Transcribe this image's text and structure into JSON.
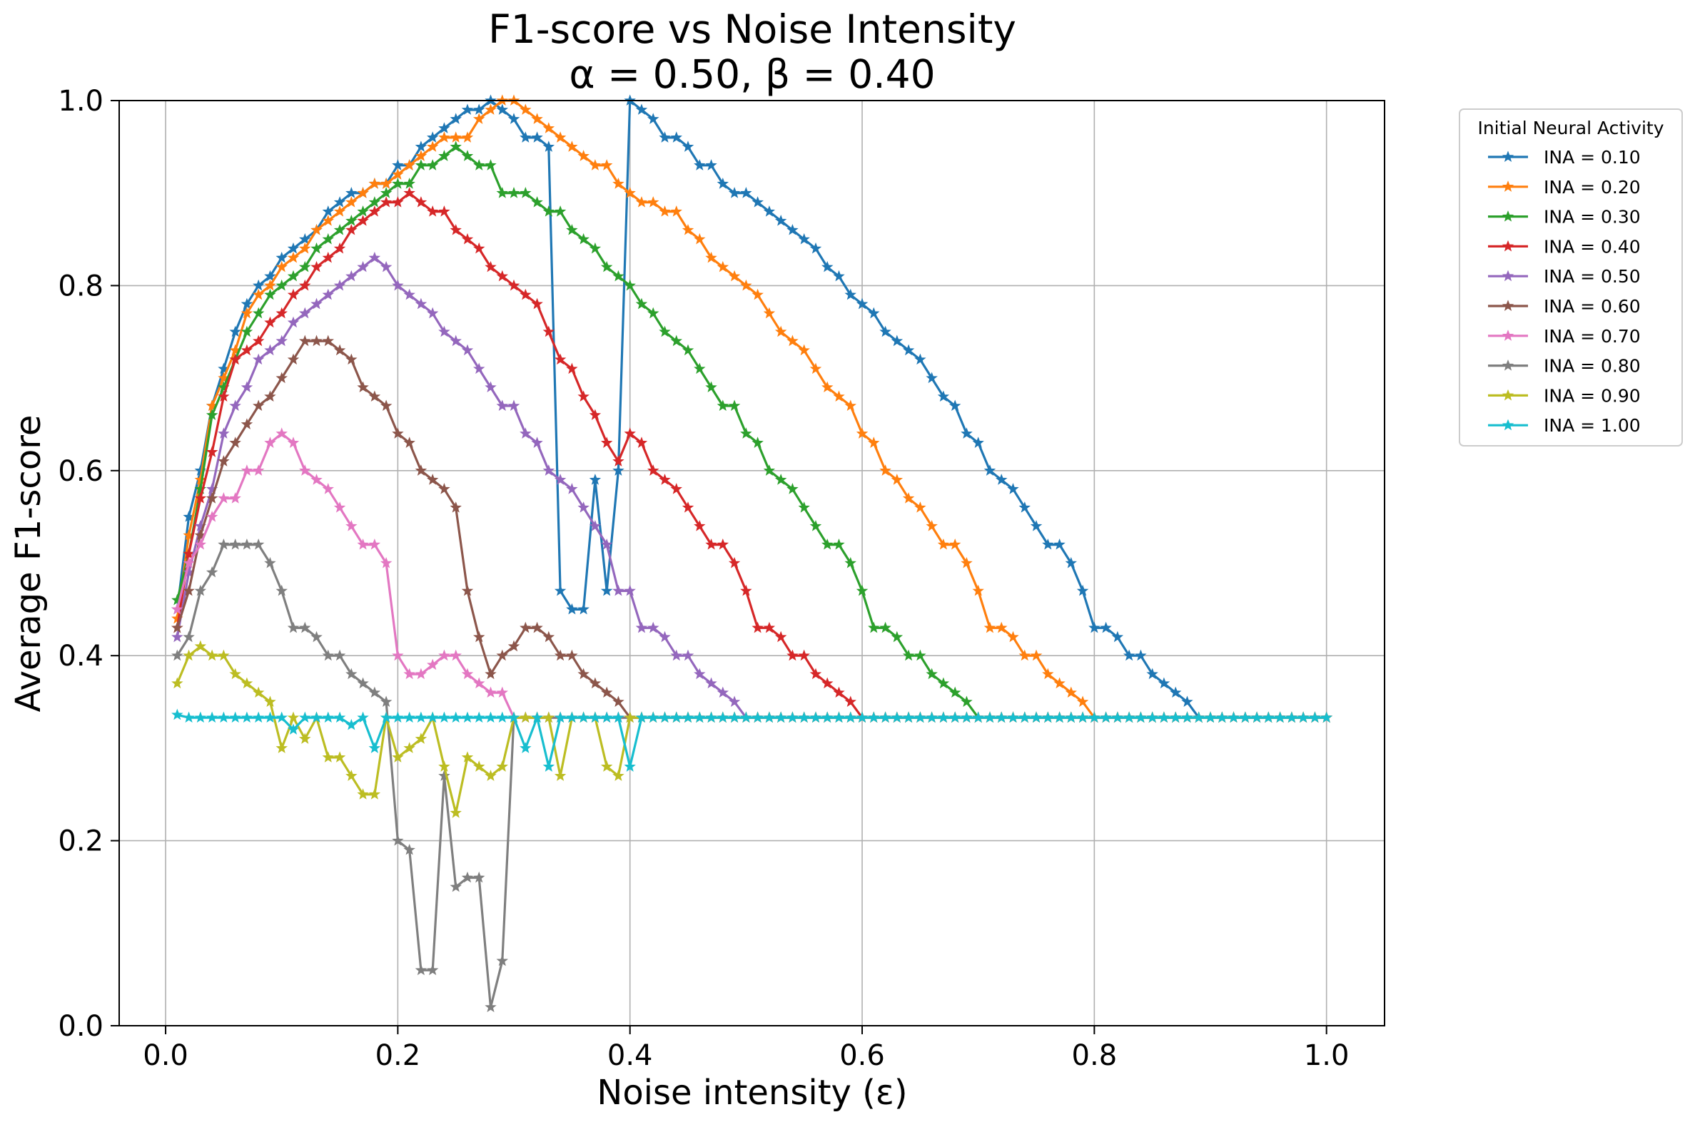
{
  "chart_data": {
    "type": "line",
    "title": "F1-score vs Noise Intensity",
    "subtitle": "α = 0.50, β = 0.40",
    "xlabel": "Noise intensity (ε)",
    "ylabel": "Average F1-score",
    "xlim": [
      -0.04,
      1.05
    ],
    "ylim": [
      0.0,
      1.0
    ],
    "xticks": [
      "0.0",
      "0.2",
      "0.4",
      "0.6",
      "0.8",
      "1.0"
    ],
    "yticks": [
      "0.0",
      "0.2",
      "0.4",
      "0.6",
      "0.8",
      "1.0"
    ],
    "grid": true,
    "marker": "star",
    "legend_title": "Initial Neural Activity",
    "legend_position": "outside-top-right",
    "x_start": 0.01,
    "x_step": 0.01,
    "series": [
      {
        "name": "INA = 0.10",
        "color": "#1f77b4",
        "values": [
          0.45,
          0.55,
          0.6,
          0.67,
          0.71,
          0.75,
          0.78,
          0.8,
          0.81,
          0.83,
          0.84,
          0.85,
          0.86,
          0.88,
          0.89,
          0.9,
          0.9,
          0.91,
          0.91,
          0.93,
          0.93,
          0.95,
          0.96,
          0.97,
          0.98,
          0.99,
          0.99,
          1.0,
          0.99,
          0.98,
          0.96,
          0.96,
          0.95,
          0.47,
          0.45,
          0.45,
          0.59,
          0.47,
          0.6,
          1.0,
          0.99,
          0.98,
          0.96,
          0.96,
          0.95,
          0.93,
          0.93,
          0.91,
          0.9,
          0.9,
          0.89,
          0.88,
          0.87,
          0.86,
          0.85,
          0.84,
          0.82,
          0.81,
          0.79,
          0.78,
          0.77,
          0.75,
          0.74,
          0.73,
          0.72,
          0.7,
          0.68,
          0.67,
          0.64,
          0.63,
          0.6,
          0.59,
          0.58,
          0.56,
          0.54,
          0.52,
          0.52,
          0.5,
          0.47,
          0.43,
          0.43,
          0.42,
          0.4,
          0.4,
          0.38,
          0.37,
          0.36,
          0.35,
          0.333,
          0.333,
          0.333,
          0.333,
          0.333,
          0.333,
          0.333,
          0.333,
          0.333,
          0.333,
          0.333,
          0.333
        ]
      },
      {
        "name": "INA = 0.20",
        "color": "#ff7f0e",
        "values": [
          0.44,
          0.53,
          0.59,
          0.67,
          0.7,
          0.73,
          0.77,
          0.79,
          0.8,
          0.82,
          0.83,
          0.84,
          0.86,
          0.87,
          0.88,
          0.89,
          0.9,
          0.91,
          0.91,
          0.92,
          0.93,
          0.94,
          0.95,
          0.96,
          0.96,
          0.96,
          0.98,
          0.99,
          1.0,
          1.0,
          0.99,
          0.98,
          0.97,
          0.96,
          0.95,
          0.94,
          0.93,
          0.93,
          0.91,
          0.9,
          0.89,
          0.89,
          0.88,
          0.88,
          0.86,
          0.85,
          0.83,
          0.82,
          0.81,
          0.8,
          0.79,
          0.77,
          0.75,
          0.74,
          0.73,
          0.71,
          0.69,
          0.68,
          0.67,
          0.64,
          0.63,
          0.6,
          0.59,
          0.57,
          0.56,
          0.54,
          0.52,
          0.52,
          0.5,
          0.47,
          0.43,
          0.43,
          0.42,
          0.4,
          0.4,
          0.38,
          0.37,
          0.36,
          0.35,
          0.333,
          0.333,
          0.333,
          0.333,
          0.333,
          0.333,
          0.333,
          0.333,
          0.333,
          0.333,
          0.333,
          0.333,
          0.333,
          0.333,
          0.333,
          0.333,
          0.333,
          0.333,
          0.333,
          0.333,
          0.333
        ]
      },
      {
        "name": "INA = 0.30",
        "color": "#2ca02c",
        "values": [
          0.46,
          0.51,
          0.58,
          0.66,
          0.69,
          0.72,
          0.75,
          0.77,
          0.79,
          0.8,
          0.81,
          0.82,
          0.84,
          0.85,
          0.86,
          0.87,
          0.88,
          0.89,
          0.9,
          0.91,
          0.91,
          0.93,
          0.93,
          0.94,
          0.95,
          0.94,
          0.93,
          0.93,
          0.9,
          0.9,
          0.9,
          0.89,
          0.88,
          0.88,
          0.86,
          0.85,
          0.84,
          0.82,
          0.81,
          0.8,
          0.78,
          0.77,
          0.75,
          0.74,
          0.73,
          0.71,
          0.69,
          0.67,
          0.67,
          0.64,
          0.63,
          0.6,
          0.59,
          0.58,
          0.56,
          0.54,
          0.52,
          0.52,
          0.5,
          0.47,
          0.43,
          0.43,
          0.42,
          0.4,
          0.4,
          0.38,
          0.37,
          0.36,
          0.35,
          0.333,
          0.333,
          0.333,
          0.333,
          0.333,
          0.333,
          0.333,
          0.333,
          0.333,
          0.333,
          0.333,
          0.333,
          0.333,
          0.333,
          0.333,
          0.333,
          0.333,
          0.333,
          0.333,
          0.333,
          0.333,
          0.333,
          0.333,
          0.333,
          0.333,
          0.333,
          0.333,
          0.333,
          0.333,
          0.333,
          0.333
        ]
      },
      {
        "name": "INA = 0.40",
        "color": "#d62728",
        "values": [
          0.43,
          0.51,
          0.57,
          0.62,
          0.68,
          0.72,
          0.73,
          0.74,
          0.76,
          0.77,
          0.79,
          0.8,
          0.82,
          0.83,
          0.84,
          0.86,
          0.87,
          0.88,
          0.89,
          0.89,
          0.9,
          0.89,
          0.88,
          0.88,
          0.86,
          0.85,
          0.84,
          0.82,
          0.81,
          0.8,
          0.79,
          0.78,
          0.75,
          0.72,
          0.71,
          0.68,
          0.66,
          0.63,
          0.61,
          0.64,
          0.63,
          0.6,
          0.59,
          0.58,
          0.56,
          0.54,
          0.52,
          0.52,
          0.5,
          0.47,
          0.43,
          0.43,
          0.42,
          0.4,
          0.4,
          0.38,
          0.37,
          0.36,
          0.35,
          0.333,
          0.333,
          0.333,
          0.333,
          0.333,
          0.333,
          0.333,
          0.333,
          0.333,
          0.333,
          0.333,
          0.333,
          0.333,
          0.333,
          0.333,
          0.333,
          0.333,
          0.333,
          0.333,
          0.333,
          0.333,
          0.333,
          0.333,
          0.333,
          0.333,
          0.333,
          0.333,
          0.333,
          0.333,
          0.333,
          0.333,
          0.333,
          0.333,
          0.333,
          0.333,
          0.333,
          0.333,
          0.333,
          0.333,
          0.333,
          0.333
        ]
      },
      {
        "name": "INA = 0.50",
        "color": "#9467bd",
        "values": [
          0.42,
          0.49,
          0.54,
          0.58,
          0.64,
          0.67,
          0.69,
          0.72,
          0.73,
          0.74,
          0.76,
          0.77,
          0.78,
          0.79,
          0.8,
          0.81,
          0.82,
          0.83,
          0.82,
          0.8,
          0.79,
          0.78,
          0.77,
          0.75,
          0.74,
          0.73,
          0.71,
          0.69,
          0.67,
          0.67,
          0.64,
          0.63,
          0.6,
          0.59,
          0.58,
          0.56,
          0.54,
          0.52,
          0.47,
          0.47,
          0.43,
          0.43,
          0.42,
          0.4,
          0.4,
          0.38,
          0.37,
          0.36,
          0.35,
          0.333,
          0.333,
          0.333,
          0.333,
          0.333,
          0.333,
          0.333,
          0.333,
          0.333,
          0.333,
          0.333,
          0.333,
          0.333,
          0.333,
          0.333,
          0.333,
          0.333,
          0.333,
          0.333,
          0.333,
          0.333,
          0.333,
          0.333,
          0.333,
          0.333,
          0.333,
          0.333,
          0.333,
          0.333,
          0.333,
          0.333,
          0.333,
          0.333,
          0.333,
          0.333,
          0.333,
          0.333,
          0.333,
          0.333,
          0.333,
          0.333,
          0.333,
          0.333,
          0.333,
          0.333,
          0.333,
          0.333,
          0.333,
          0.333,
          0.333,
          0.333
        ]
      },
      {
        "name": "INA = 0.60",
        "color": "#8c564b",
        "values": [
          0.43,
          0.47,
          0.53,
          0.57,
          0.61,
          0.63,
          0.65,
          0.67,
          0.68,
          0.7,
          0.72,
          0.74,
          0.74,
          0.74,
          0.73,
          0.72,
          0.69,
          0.68,
          0.67,
          0.64,
          0.63,
          0.6,
          0.59,
          0.58,
          0.56,
          0.47,
          0.42,
          0.38,
          0.4,
          0.41,
          0.43,
          0.43,
          0.42,
          0.4,
          0.4,
          0.38,
          0.37,
          0.36,
          0.35,
          0.333,
          0.333,
          0.333,
          0.333,
          0.333,
          0.333,
          0.333,
          0.333,
          0.333,
          0.333,
          0.333,
          0.333,
          0.333,
          0.333,
          0.333,
          0.333,
          0.333,
          0.333,
          0.333,
          0.333,
          0.333,
          0.333,
          0.333,
          0.333,
          0.333,
          0.333,
          0.333,
          0.333,
          0.333,
          0.333,
          0.333,
          0.333,
          0.333,
          0.333,
          0.333,
          0.333,
          0.333,
          0.333,
          0.333,
          0.333,
          0.333,
          0.333,
          0.333,
          0.333,
          0.333,
          0.333,
          0.333,
          0.333,
          0.333,
          0.333,
          0.333,
          0.333,
          0.333,
          0.333,
          0.333,
          0.333,
          0.333,
          0.333,
          0.333,
          0.333,
          0.333
        ]
      },
      {
        "name": "INA = 0.70",
        "color": "#e377c2",
        "values": [
          0.45,
          0.5,
          0.52,
          0.55,
          0.57,
          0.57,
          0.6,
          0.6,
          0.63,
          0.64,
          0.63,
          0.6,
          0.59,
          0.58,
          0.56,
          0.54,
          0.52,
          0.52,
          0.5,
          0.4,
          0.38,
          0.38,
          0.39,
          0.4,
          0.4,
          0.38,
          0.37,
          0.36,
          0.36,
          0.333,
          0.333,
          0.333,
          0.333,
          0.333,
          0.333,
          0.333,
          0.333,
          0.333,
          0.333,
          0.333,
          0.333,
          0.333,
          0.333,
          0.333,
          0.333,
          0.333,
          0.333,
          0.333,
          0.333,
          0.333,
          0.333,
          0.333,
          0.333,
          0.333,
          0.333,
          0.333,
          0.333,
          0.333,
          0.333,
          0.333,
          0.333,
          0.333,
          0.333,
          0.333,
          0.333,
          0.333,
          0.333,
          0.333,
          0.333,
          0.333,
          0.333,
          0.333,
          0.333,
          0.333,
          0.333,
          0.333,
          0.333,
          0.333,
          0.333,
          0.333,
          0.333,
          0.333,
          0.333,
          0.333,
          0.333,
          0.333,
          0.333,
          0.333,
          0.333,
          0.333,
          0.333,
          0.333,
          0.333,
          0.333,
          0.333,
          0.333,
          0.333,
          0.333,
          0.333,
          0.333
        ]
      },
      {
        "name": "INA = 0.80",
        "color": "#7f7f7f",
        "values": [
          0.4,
          0.42,
          0.47,
          0.49,
          0.52,
          0.52,
          0.52,
          0.52,
          0.5,
          0.47,
          0.43,
          0.43,
          0.42,
          0.4,
          0.4,
          0.38,
          0.37,
          0.36,
          0.35,
          0.2,
          0.19,
          0.06,
          0.06,
          0.27,
          0.15,
          0.16,
          0.16,
          0.02,
          0.07,
          0.333,
          0.333,
          0.333,
          0.333,
          0.333,
          0.333,
          0.333,
          0.333,
          0.333,
          0.333,
          0.333,
          0.333,
          0.333,
          0.333,
          0.333,
          0.333,
          0.333,
          0.333,
          0.333,
          0.333,
          0.333,
          0.333,
          0.333,
          0.333,
          0.333,
          0.333,
          0.333,
          0.333,
          0.333,
          0.333,
          0.333,
          0.333,
          0.333,
          0.333,
          0.333,
          0.333,
          0.333,
          0.333,
          0.333,
          0.333,
          0.333,
          0.333,
          0.333,
          0.333,
          0.333,
          0.333,
          0.333,
          0.333,
          0.333,
          0.333,
          0.333,
          0.333,
          0.333,
          0.333,
          0.333,
          0.333,
          0.333,
          0.333,
          0.333,
          0.333,
          0.333,
          0.333,
          0.333,
          0.333,
          0.333,
          0.333,
          0.333,
          0.333,
          0.333,
          0.333,
          0.333
        ]
      },
      {
        "name": "INA = 0.90",
        "color": "#bcbd22",
        "values": [
          0.37,
          0.4,
          0.41,
          0.4,
          0.4,
          0.38,
          0.37,
          0.36,
          0.35,
          0.3,
          0.333,
          0.31,
          0.333,
          0.29,
          0.29,
          0.27,
          0.25,
          0.25,
          0.333,
          0.29,
          0.3,
          0.31,
          0.333,
          0.28,
          0.23,
          0.29,
          0.28,
          0.27,
          0.28,
          0.333,
          0.333,
          0.333,
          0.333,
          0.27,
          0.333,
          0.333,
          0.333,
          0.28,
          0.27,
          0.333,
          0.333,
          0.333,
          0.333,
          0.333,
          0.333,
          0.333,
          0.333,
          0.333,
          0.333,
          0.333,
          0.333,
          0.333,
          0.333,
          0.333,
          0.333,
          0.333,
          0.333,
          0.333,
          0.333,
          0.333,
          0.333,
          0.333,
          0.333,
          0.333,
          0.333,
          0.333,
          0.333,
          0.333,
          0.333,
          0.333,
          0.333,
          0.333,
          0.333,
          0.333,
          0.333,
          0.333,
          0.333,
          0.333,
          0.333,
          0.333,
          0.333,
          0.333,
          0.333,
          0.333,
          0.333,
          0.333,
          0.333,
          0.333,
          0.333,
          0.333,
          0.333,
          0.333,
          0.333,
          0.333,
          0.333,
          0.333,
          0.333,
          0.333,
          0.333,
          0.333
        ]
      },
      {
        "name": "INA = 1.00",
        "color": "#17becf",
        "values": [
          0.336,
          0.333,
          0.333,
          0.333,
          0.333,
          0.333,
          0.333,
          0.333,
          0.333,
          0.333,
          0.32,
          0.333,
          0.333,
          0.333,
          0.333,
          0.325,
          0.333,
          0.3,
          0.333,
          0.333,
          0.333,
          0.333,
          0.333,
          0.333,
          0.333,
          0.333,
          0.333,
          0.333,
          0.333,
          0.333,
          0.3,
          0.333,
          0.28,
          0.333,
          0.333,
          0.333,
          0.333,
          0.333,
          0.333,
          0.28,
          0.333,
          0.333,
          0.333,
          0.333,
          0.333,
          0.333,
          0.333,
          0.333,
          0.333,
          0.333,
          0.333,
          0.333,
          0.333,
          0.333,
          0.333,
          0.333,
          0.333,
          0.333,
          0.333,
          0.333,
          0.333,
          0.333,
          0.333,
          0.333,
          0.333,
          0.333,
          0.333,
          0.333,
          0.333,
          0.333,
          0.333,
          0.333,
          0.333,
          0.333,
          0.333,
          0.333,
          0.333,
          0.333,
          0.333,
          0.333,
          0.333,
          0.333,
          0.333,
          0.333,
          0.333,
          0.333,
          0.333,
          0.333,
          0.333,
          0.333,
          0.333,
          0.333,
          0.333,
          0.333,
          0.333,
          0.333,
          0.333,
          0.333,
          0.333,
          0.333
        ]
      }
    ]
  }
}
